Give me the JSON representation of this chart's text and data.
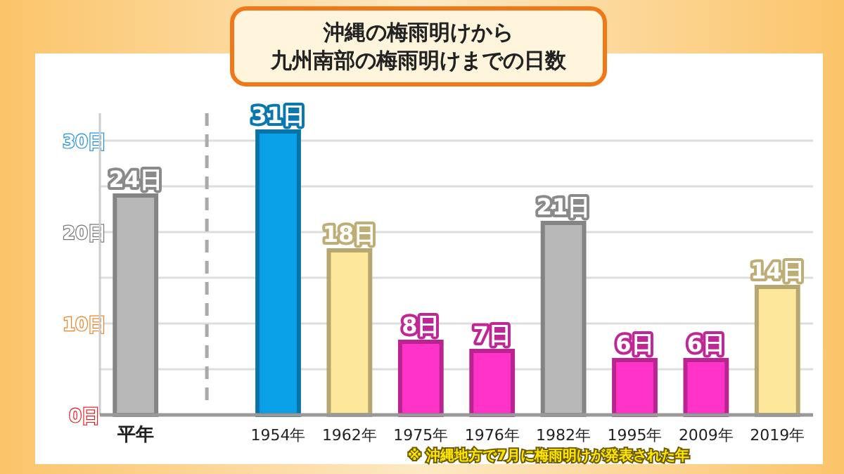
{
  "chart_data": {
    "type": "bar",
    "title": "沖縄の梅雨明けから",
    "subtitle": "九州南部の梅雨明けまでの日数",
    "categories": [
      "平年",
      null,
      "1954年",
      "1962年",
      "1975年",
      "1976年",
      "1982年",
      "1995年",
      "2009年",
      "2019年"
    ],
    "values": [
      24,
      null,
      31,
      18,
      8,
      7,
      21,
      6,
      6,
      14
    ],
    "colors": [
      "#b8b8b8",
      null,
      "#0aa0e8",
      "#fde79a",
      "#ff33c8",
      "#ff33c8",
      "#b8b8b8",
      "#ff33c8",
      "#ff33c8",
      "#fde79a"
    ],
    "value_labels": [
      "24日",
      null,
      "31日",
      "18日",
      "8日",
      "7日",
      "21日",
      "6日",
      "6日",
      "14日"
    ],
    "ylim": [
      0,
      33
    ],
    "yticks": [
      {
        "value": 0,
        "label": "0日"
      },
      {
        "value": 5,
        "label": null
      },
      {
        "value": 10,
        "label": "10日"
      },
      {
        "value": 15,
        "label": null
      },
      {
        "value": 20,
        "label": "20日"
      },
      {
        "value": 25,
        "label": null
      },
      {
        "value": 30,
        "label": "30日"
      }
    ],
    "grid": "y",
    "annotations": [
      "※ 沖縄地方で7月に梅雨明けが発表された年"
    ]
  }
}
